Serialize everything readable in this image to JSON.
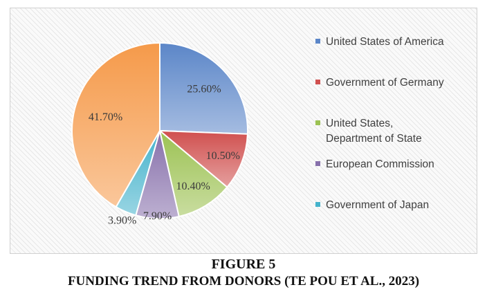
{
  "chart_data": {
    "type": "pie",
    "categories": [
      "United States of America",
      "Government of Germany",
      "United States, Department of State",
      "European Commission",
      "Government of Japan",
      ""
    ],
    "values": [
      25.6,
      10.5,
      10.4,
      7.9,
      3.9,
      41.7
    ],
    "data_labels": [
      "25.60%",
      "10.50%",
      "10.40%",
      "7.90%",
      "3.90%",
      "41.70%"
    ],
    "colors": [
      "#5b86c8",
      "#d0504f",
      "#9cc253",
      "#8770ab",
      "#45b3cc",
      "#f59a4a"
    ],
    "legend": {
      "placement": "right",
      "entries": [
        "United States of America",
        "Government of Germany",
        "United States,\nDepartment of State",
        "European Commission",
        "Government of Japan"
      ]
    }
  },
  "caption": {
    "figure_number": "FIGURE 5",
    "title": "FUNDING TREND FROM DONORS (TE POU ET AL., 2023)"
  }
}
